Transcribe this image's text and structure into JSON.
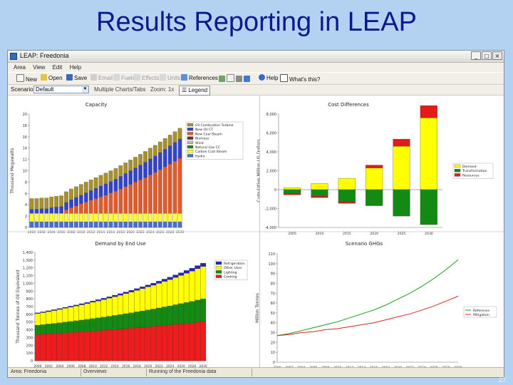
{
  "slide": {
    "title": "Results Reporting in LEAP",
    "page_number": "27"
  },
  "window": {
    "title": "LEAP: Freedonia"
  },
  "menu": [
    "Area",
    "View",
    "Edit",
    "Help"
  ],
  "toolbar": {
    "items": [
      {
        "label": "New",
        "enabled": true,
        "icon": "new-file-icon"
      },
      {
        "label": "Open",
        "enabled": true,
        "icon": "open-folder-icon"
      },
      {
        "label": "Save",
        "enabled": true,
        "icon": "save-icon"
      },
      {
        "label": "Email",
        "enabled": false,
        "icon": "email-icon"
      },
      {
        "label": "Fuels",
        "enabled": false,
        "icon": "fuels-icon"
      },
      {
        "label": "Effects",
        "enabled": false,
        "icon": "effects-icon"
      },
      {
        "label": "Units",
        "enabled": false,
        "icon": "units-icon"
      },
      {
        "label": "References",
        "enabled": true,
        "icon": "references-icon"
      },
      {
        "label": "Help",
        "enabled": true,
        "icon": "help-icon"
      },
      {
        "label": "What's this?",
        "enabled": true,
        "icon": "whats-this-icon"
      }
    ]
  },
  "options": {
    "scenario_label": "Scenario",
    "scenario_value": "Default",
    "multiple_label": "Multiple Charts/Tabs",
    "zoom_label": "Zoom: 1x",
    "legend_label": "Legend"
  },
  "status": {
    "area": "Area: Freedonia",
    "view": "Overviews",
    "info": "Running of the Freedonia data"
  },
  "colors": {
    "accent": "#2e6cc8",
    "title": "#0b1a8c",
    "background": "#b3d2f1"
  },
  "chart_data": [
    {
      "type": "bar",
      "title": "Capacity",
      "ylabel": "Thousand Megawatts",
      "ylim": [
        0,
        20
      ],
      "yticks": [
        0,
        2,
        4,
        6,
        8,
        10,
        12,
        14,
        16,
        18,
        20
      ],
      "categories": [
        "2000",
        "2001",
        "2002",
        "2003",
        "2004",
        "2005",
        "2006",
        "2007",
        "2008",
        "2009",
        "2010",
        "2011",
        "2012",
        "2013",
        "2014",
        "2015",
        "2016",
        "2017",
        "2018",
        "2019",
        "2020",
        "2021",
        "2022",
        "2023",
        "2024",
        "2025",
        "2026",
        "2027",
        "2028",
        "2029",
        "2030"
      ],
      "xticklabels": [
        "2000",
        "2002",
        "2004",
        "2006",
        "2008",
        "2010",
        "2012",
        "2014",
        "2016",
        "2018",
        "2020",
        "2022",
        "2024",
        "2026",
        "2028",
        "2030"
      ],
      "series": [
        {
          "name": "Hydro",
          "color": "#4a6fd1",
          "values": [
            1.0,
            1.0,
            1.0,
            1.0,
            1.0,
            1.0,
            1.0,
            1.0,
            1.0,
            1.0,
            1.0,
            1.0,
            1.0,
            1.0,
            1.0,
            1.0,
            1.0,
            1.0,
            1.0,
            1.0,
            1.0,
            1.0,
            1.0,
            1.0,
            1.0,
            1.0,
            1.0,
            1.0,
            1.0,
            1.0,
            1.0
          ]
        },
        {
          "name": "Carbon Coal Steam",
          "color": "#ffff33",
          "values": [
            1.5,
            1.5,
            1.5,
            1.5,
            1.5,
            1.5,
            1.5,
            1.5,
            1.5,
            1.5,
            1.5,
            1.5,
            1.5,
            1.5,
            1.5,
            1.5,
            1.5,
            1.5,
            1.5,
            1.5,
            1.5,
            1.5,
            1.5,
            1.5,
            1.5,
            1.5,
            1.5,
            1.5,
            1.5,
            1.5,
            1.5
          ]
        },
        {
          "name": "Natural Gas CC",
          "color": "#1e8a1e",
          "values": [
            0,
            0,
            0,
            0,
            0,
            0,
            0,
            0,
            0,
            0,
            0,
            0,
            0,
            0,
            0,
            0,
            0,
            0,
            0,
            0,
            0,
            0,
            0,
            0,
            0,
            0,
            0,
            0,
            0,
            0,
            0
          ]
        },
        {
          "name": "Wind",
          "color": "#b8b8b8",
          "values": [
            0,
            0,
            0,
            0,
            0,
            0,
            0,
            0,
            0,
            0,
            0,
            0,
            0,
            0,
            0,
            0,
            0,
            0,
            0,
            0,
            0,
            0,
            0,
            0,
            0,
            0,
            0,
            0,
            0,
            0,
            0
          ]
        },
        {
          "name": "Biomass",
          "color": "#5c3a1a",
          "values": [
            0,
            0,
            0,
            0,
            0,
            0,
            0,
            0,
            0,
            0,
            0,
            0,
            0,
            0,
            0,
            0,
            0,
            0,
            0,
            0,
            0,
            0,
            0,
            0,
            0,
            0,
            0,
            0,
            0,
            0,
            0
          ]
        },
        {
          "name": "New Coal Steam",
          "color": "#e05a2a",
          "values": [
            0,
            0,
            0,
            0,
            0,
            0,
            0,
            0.6,
            1.0,
            1.3,
            1.7,
            2.0,
            2.3,
            2.6,
            2.9,
            3.2,
            3.6,
            3.9,
            4.3,
            4.7,
            5.1,
            5.5,
            5.9,
            6.3,
            6.8,
            7.2,
            7.7,
            8.2,
            8.7,
            9.2,
            9.7
          ]
        },
        {
          "name": "New Oil CT",
          "color": "#3444c8",
          "values": [
            0.7,
            0.7,
            0.8,
            0.8,
            1.0,
            1.1,
            1.2,
            1.3,
            1.4,
            1.5,
            1.5,
            1.6,
            1.7,
            1.8,
            1.9,
            2.0,
            2.0,
            2.1,
            2.2,
            2.3,
            2.4,
            2.5,
            2.6,
            2.7,
            2.8,
            2.9,
            3.0,
            3.1,
            3.2,
            3.3,
            3.4
          ]
        },
        {
          "name": "Oil Combustion Turbine",
          "color": "#a8902a",
          "values": [
            1.9,
            1.9,
            1.9,
            1.9,
            1.9,
            1.9,
            1.9,
            1.9,
            1.9,
            1.9,
            1.9,
            1.9,
            1.9,
            1.9,
            1.9,
            1.9,
            1.9,
            1.9,
            1.9,
            1.9,
            1.9,
            1.9,
            1.9,
            1.9,
            1.9,
            1.9,
            1.9,
            1.9,
            1.9,
            1.9,
            1.9
          ]
        }
      ],
      "legend_order": [
        "Oil Combustion Turbine",
        "New Oil CT",
        "New Coal Steam",
        "Biomass",
        "Wind",
        "Natural Gas CC",
        "Carbon Coal Steam",
        "Hydro"
      ]
    },
    {
      "type": "bar",
      "title": "Cost Differences",
      "ylabel": "Cumulative Million US Dollars",
      "ylim": [
        -4000,
        8000
      ],
      "yticks": [
        -4000,
        -2000,
        0,
        2000,
        4000,
        6000,
        8000
      ],
      "ytick_labels": [
        "-4,000",
        "-2,000",
        "0",
        "2,000",
        "4,000",
        "6,000",
        "8,000"
      ],
      "categories": [
        "2005",
        "2010",
        "2015",
        "2020",
        "2025",
        "2030"
      ],
      "series": [
        {
          "name": "Demand",
          "color": "#ffff00",
          "values": [
            200,
            650,
            1200,
            2300,
            4600,
            7600
          ]
        },
        {
          "name": "Transformation",
          "color": "#138a13",
          "values": [
            -400,
            -700,
            -1300,
            -1700,
            -2800,
            -3700
          ]
        },
        {
          "name": "Resources",
          "color": "#e31b1b",
          "values": [
            -150,
            -150,
            -150,
            300,
            750,
            1300
          ]
        }
      ]
    },
    {
      "type": "area",
      "title": "Demand by End Use",
      "ylabel": "Thousand Tonnes of Oil Equivalent",
      "ylim": [
        0,
        1400
      ],
      "yticks": [
        0,
        100,
        200,
        300,
        400,
        500,
        600,
        700,
        800,
        900,
        1000,
        1100,
        1200,
        1300,
        1400
      ],
      "ytick_labels": [
        "0",
        "100",
        "200",
        "300",
        "400",
        "500",
        "600",
        "700",
        "800",
        "900",
        "1,000",
        "1,100",
        "1,200",
        "1,300",
        "1,400"
      ],
      "x": [
        2000,
        2001,
        2002,
        2003,
        2004,
        2005,
        2006,
        2007,
        2008,
        2009,
        2010,
        2011,
        2012,
        2013,
        2014,
        2015,
        2016,
        2017,
        2018,
        2019,
        2020,
        2021,
        2022,
        2023,
        2024,
        2025,
        2026,
        2027,
        2028,
        2029,
        2030
      ],
      "xticklabels": [
        "2000",
        "2002",
        "2004",
        "2006",
        "2008",
        "2010",
        "2012",
        "2014",
        "2016",
        "2018",
        "2020",
        "2022",
        "2024",
        "2026",
        "2028",
        "2030"
      ],
      "series": [
        {
          "name": "Cooking",
          "color": "#ee1c1c",
          "values": [
            340,
            344,
            348,
            352,
            356,
            361,
            365,
            370,
            374,
            379,
            384,
            389,
            394,
            399,
            404,
            410,
            415,
            421,
            427,
            433,
            439,
            445,
            451,
            458,
            464,
            471,
            478,
            485,
            492,
            500,
            507
          ]
        },
        {
          "name": "Lighting",
          "color": "#138a13",
          "values": [
            120,
            123,
            127,
            131,
            135,
            139,
            143,
            147,
            152,
            156,
            161,
            166,
            171,
            176,
            182,
            187,
            193,
            199,
            205,
            211,
            218,
            224,
            231,
            238,
            245,
            253,
            260,
            268,
            276,
            285,
            293
          ]
        },
        {
          "name": "Other Uses",
          "color": "#ffff00",
          "values": [
            150,
            155,
            160,
            166,
            172,
            178,
            184,
            190,
            197,
            204,
            211,
            218,
            226,
            234,
            242,
            250,
            259,
            268,
            277,
            287,
            297,
            307,
            318,
            329,
            340,
            352,
            364,
            377,
            390,
            404,
            418
          ]
        },
        {
          "name": "Refrigeration",
          "color": "#2424c8",
          "values": [
            10,
            10.5,
            11,
            11.5,
            12,
            12.6,
            13.2,
            13.8,
            14.5,
            15.2,
            16,
            16.8,
            17.6,
            18.5,
            19.4,
            20.4,
            21.4,
            22.5,
            23.6,
            24.8,
            26,
            27.3,
            28.7,
            30.1,
            31.6,
            33.2,
            34.9,
            36.6,
            38.4,
            40.3,
            42.3
          ]
        }
      ]
    },
    {
      "type": "line",
      "title": "Scenario GHGs",
      "ylabel": "Million Tonnes",
      "ylim": [
        0,
        110
      ],
      "yticks": [
        0,
        10,
        20,
        30,
        40,
        50,
        60,
        70,
        80,
        90,
        100,
        110
      ],
      "x": [
        2000,
        2002,
        2004,
        2006,
        2008,
        2010,
        2012,
        2014,
        2016,
        2018,
        2020,
        2022,
        2024,
        2026,
        2028,
        2030
      ],
      "xticklabels": [
        "2000",
        "2002",
        "2004",
        "2006",
        "2008",
        "2010",
        "2012",
        "2014",
        "2016",
        "2018",
        "2020",
        "2022",
        "2024",
        "2026",
        "2028",
        "2030"
      ],
      "series": [
        {
          "name": "Reference",
          "color": "#189a18",
          "values": [
            27,
            29,
            32,
            35,
            38,
            41,
            45,
            49,
            53,
            58,
            64,
            70,
            77,
            85,
            94,
            104
          ]
        },
        {
          "name": "Mitigation",
          "color": "#e02222",
          "values": [
            27,
            28,
            30,
            31,
            33,
            34,
            36,
            38,
            40,
            43,
            46,
            49,
            53,
            57,
            62,
            67
          ]
        }
      ]
    }
  ]
}
